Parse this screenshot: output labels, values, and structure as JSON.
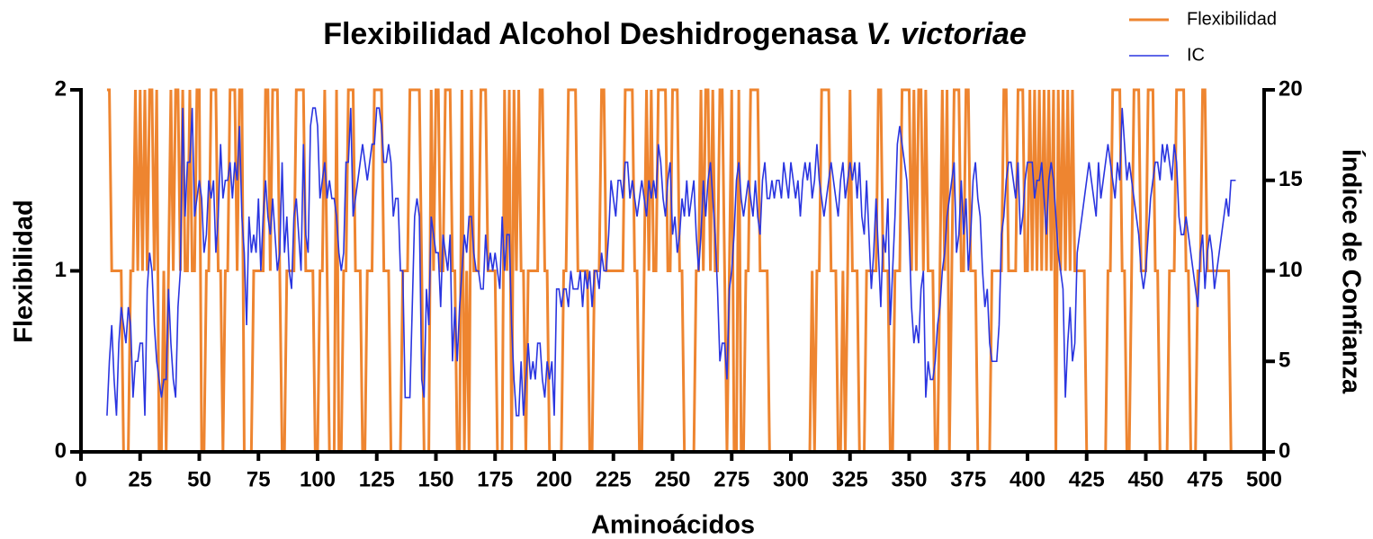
{
  "chart_data": {
    "type": "line",
    "title": [
      "Flexibilidad Alcohol Deshidrogenasa",
      "V. victoriae"
    ],
    "x_label": "Aminoácidos",
    "y_label": "Flexibilidad",
    "y2_label": "Índice de Confianza",
    "xlim": [
      0,
      500
    ],
    "xticks": [
      0,
      25,
      50,
      75,
      100,
      125,
      150,
      175,
      200,
      225,
      250,
      275,
      300,
      325,
      350,
      375,
      400,
      425,
      450,
      475,
      500
    ],
    "ylim": [
      0,
      2
    ],
    "yticks": [
      0,
      1,
      2
    ],
    "y2lim": [
      0,
      20
    ],
    "y2ticks": [
      0,
      5,
      10,
      15,
      20
    ],
    "legend": "top-right",
    "x": [
      11,
      12,
      13,
      14,
      15,
      16,
      17,
      18,
      19,
      20,
      21,
      22,
      23,
      24,
      25,
      26,
      27,
      28,
      29,
      30,
      31,
      32,
      33,
      34,
      35,
      36,
      37,
      38,
      39,
      40,
      41,
      42,
      43,
      44,
      45,
      46,
      47,
      48,
      49,
      50,
      51,
      52,
      53,
      54,
      55,
      56,
      57,
      58,
      59,
      60,
      61,
      62,
      63,
      64,
      65,
      66,
      67,
      68,
      69,
      70,
      71,
      72,
      73,
      74,
      75,
      76,
      77,
      78,
      79,
      80,
      81,
      82,
      83,
      84,
      85,
      86,
      87,
      88,
      89,
      90,
      91,
      92,
      93,
      94,
      95,
      96,
      97,
      98,
      99,
      100,
      101,
      102,
      103,
      104,
      105,
      106,
      107,
      108,
      109,
      110,
      111,
      112,
      113,
      114,
      115,
      116,
      117,
      118,
      119,
      120,
      121,
      122,
      123,
      124,
      125,
      126,
      127,
      128,
      129,
      130,
      131,
      132,
      133,
      134,
      135,
      136,
      137,
      138,
      139,
      140,
      141,
      142,
      143,
      144,
      145,
      146,
      147,
      148,
      149,
      150,
      151,
      152,
      153,
      154,
      155,
      156,
      157,
      158,
      159,
      160,
      161,
      162,
      163,
      164,
      165,
      166,
      167,
      168,
      169,
      170,
      171,
      172,
      173,
      174,
      175,
      176,
      177,
      178,
      179,
      180,
      181,
      182,
      183,
      184,
      185,
      186,
      187,
      188,
      189,
      190,
      191,
      192,
      193,
      194,
      195,
      196,
      197,
      198,
      199,
      200,
      201,
      202,
      203,
      204,
      205,
      206,
      207,
      208,
      209,
      210,
      211,
      212,
      213,
      214,
      215,
      216,
      217,
      218,
      219,
      220,
      221,
      222,
      223,
      224,
      225,
      226,
      227,
      228,
      229,
      230,
      231,
      232,
      233,
      234,
      235,
      236,
      237,
      238,
      239,
      240,
      241,
      242,
      243,
      244,
      245,
      246,
      247,
      248,
      249,
      250,
      251,
      252,
      253,
      254,
      255,
      256,
      257,
      258,
      259,
      260,
      261,
      262,
      263,
      264,
      265,
      266,
      267,
      268,
      269,
      270,
      271,
      272,
      273,
      274,
      275,
      276,
      277,
      278,
      279,
      280,
      281,
      282,
      283,
      284,
      285,
      286,
      287,
      288,
      289,
      290,
      291,
      292,
      293,
      294,
      295,
      296,
      297,
      298,
      299,
      300,
      301,
      302,
      303,
      304,
      305,
      306,
      307,
      308,
      309,
      310,
      311,
      312,
      313,
      314,
      315,
      316,
      317,
      318,
      319,
      320,
      321,
      322,
      323,
      324,
      325,
      326,
      327,
      328,
      329,
      330,
      331,
      332,
      333,
      334,
      335,
      336,
      337,
      338,
      339,
      340,
      341,
      342,
      343,
      344,
      345,
      346,
      347,
      348,
      349,
      350,
      351,
      352,
      353,
      354,
      355,
      356,
      357,
      358,
      359,
      360,
      361,
      362,
      363,
      364,
      365,
      366,
      367,
      368,
      369,
      370,
      371,
      372,
      373,
      374,
      375,
      376,
      377,
      378,
      379,
      380,
      381,
      382,
      383,
      384,
      385,
      386,
      387,
      388,
      389,
      390,
      391,
      392,
      393,
      394,
      395,
      396,
      397,
      398,
      399,
      400,
      401,
      402,
      403,
      404,
      405,
      406,
      407,
      408,
      409,
      410,
      411,
      412,
      413,
      414,
      415,
      416,
      417,
      418,
      419,
      420,
      421,
      422,
      423,
      424,
      425,
      426,
      427,
      428,
      429,
      430,
      431,
      432,
      433,
      434,
      435,
      436,
      437,
      438,
      439,
      440,
      441,
      442,
      443,
      444,
      445,
      446,
      447,
      448,
      449,
      450,
      451,
      452,
      453,
      454,
      455,
      456,
      457,
      458,
      459,
      460,
      461,
      462,
      463,
      464,
      465,
      466,
      467,
      468,
      469,
      470,
      471,
      472,
      473,
      474,
      475,
      476,
      477,
      478,
      479,
      480,
      481,
      482,
      483,
      484,
      485,
      486,
      487,
      488
    ],
    "series": [
      {
        "name": "Flexibilidad",
        "color": "#ee8530",
        "values": [
          2,
          2,
          1,
          1,
          1,
          1,
          1,
          0,
          0,
          0,
          1,
          1,
          2,
          1,
          2,
          1,
          2,
          1,
          2,
          2,
          1,
          2,
          0,
          0,
          1,
          0,
          1,
          2,
          1,
          2,
          2,
          1,
          2,
          1,
          1,
          2,
          1,
          1,
          2,
          2,
          0,
          0,
          1,
          1,
          2,
          2,
          2,
          1,
          1,
          0,
          1,
          1,
          2,
          2,
          2,
          1,
          2,
          2,
          0,
          0,
          0,
          0,
          1,
          1,
          1,
          1,
          1,
          2,
          2,
          1,
          2,
          2,
          2,
          1,
          0,
          0,
          1,
          1,
          1,
          1,
          2,
          2,
          2,
          2,
          1,
          1,
          1,
          1,
          0,
          0,
          1,
          1,
          2,
          1,
          0,
          0,
          0,
          2,
          0,
          0,
          1,
          1,
          2,
          2,
          2,
          1,
          1,
          1,
          0,
          0,
          1,
          1,
          1,
          2,
          2,
          2,
          2,
          1,
          1,
          1,
          0,
          0,
          0,
          0,
          0,
          1,
          1,
          1,
          2,
          2,
          2,
          2,
          2,
          1,
          0,
          0,
          0,
          2,
          1,
          2,
          2,
          1,
          1,
          2,
          2,
          2,
          1,
          1,
          0,
          0,
          2,
          0,
          1,
          0,
          2,
          1,
          1,
          1,
          2,
          2,
          2,
          1,
          1,
          1,
          1,
          0,
          0,
          0,
          2,
          1,
          2,
          0,
          2,
          1,
          2,
          1,
          1,
          0,
          1,
          1,
          1,
          1,
          1,
          2,
          2,
          1,
          1,
          0,
          0,
          0,
          0,
          0,
          0,
          1,
          1,
          2,
          2,
          2,
          2,
          1,
          1,
          1,
          1,
          1,
          0,
          0,
          1,
          1,
          1,
          2,
          2,
          1,
          1,
          1,
          1,
          1,
          1,
          1,
          1,
          2,
          2,
          2,
          2,
          1,
          1,
          0,
          0,
          1,
          2,
          1,
          2,
          1,
          1,
          2,
          2,
          2,
          2,
          1,
          1,
          2,
          2,
          2,
          1,
          1,
          0,
          0,
          0,
          0,
          0,
          1,
          1,
          2,
          1,
          2,
          2,
          1,
          2,
          1,
          1,
          2,
          2,
          1,
          0,
          1,
          2,
          0,
          0,
          2,
          0,
          0,
          1,
          1,
          2,
          2,
          2,
          2,
          1,
          1,
          1,
          1,
          0,
          0,
          0,
          0,
          0,
          0,
          0,
          0,
          0,
          0,
          0,
          0,
          0,
          0,
          0,
          0,
          0,
          0,
          1,
          0,
          1,
          1,
          2,
          2,
          2,
          2,
          1,
          1,
          1,
          0,
          0,
          1,
          0,
          1,
          2,
          1,
          1,
          1,
          0,
          0,
          0,
          1,
          1,
          1,
          1,
          1,
          2,
          2,
          1,
          1,
          1,
          0,
          0,
          1,
          1,
          1,
          2,
          2,
          2,
          2,
          1,
          2,
          1,
          2,
          2,
          1,
          2,
          1,
          1,
          1,
          0,
          0,
          1,
          2,
          1,
          2,
          0,
          1,
          2,
          2,
          2,
          1,
          1,
          2,
          2,
          1,
          1,
          1,
          0,
          0,
          0,
          0,
          0,
          0,
          1,
          1,
          1,
          1,
          1,
          2,
          2,
          1,
          1,
          1,
          1,
          2,
          2,
          2,
          1,
          1,
          2,
          1,
          2,
          1,
          2,
          1,
          2,
          1,
          2,
          1,
          2,
          0,
          2,
          1,
          2,
          1,
          2,
          1,
          2,
          1,
          1,
          1,
          1,
          1,
          0,
          0,
          0,
          0,
          0,
          0,
          0,
          0,
          0,
          1,
          1,
          2,
          2,
          2,
          2,
          1,
          1,
          0,
          0,
          1,
          2,
          2,
          2,
          1,
          1,
          1,
          2,
          2,
          2,
          1,
          1,
          0,
          0,
          0,
          0,
          1,
          1,
          1,
          2,
          2,
          2,
          2,
          1,
          1,
          0,
          0,
          0,
          1,
          1,
          2,
          2,
          1,
          1,
          1,
          1,
          1,
          1,
          1,
          1,
          1,
          1,
          0,
          0,
          0
        ]
      },
      {
        "name": "IC",
        "color": "#2a35e0",
        "axis": "y2",
        "values": [
          2,
          5,
          7,
          4,
          2,
          6,
          8,
          7,
          6,
          8,
          7,
          3,
          5,
          5,
          6,
          6,
          2,
          9,
          11,
          10,
          7,
          5,
          4,
          3,
          4,
          4,
          9,
          6,
          4,
          3,
          8,
          10,
          19,
          13,
          16,
          16,
          19,
          13,
          14,
          15,
          14,
          11,
          12,
          15,
          14,
          15,
          11,
          13,
          17,
          14,
          15,
          15,
          16,
          14,
          16,
          15,
          18,
          13,
          11,
          7,
          13,
          11,
          12,
          11,
          14,
          10,
          13,
          15,
          13,
          12,
          14,
          12,
          10,
          11,
          16,
          11,
          13,
          10,
          9,
          13,
          14,
          12,
          10,
          17,
          12,
          11,
          18,
          19,
          19,
          18,
          14,
          15,
          16,
          14,
          15,
          14,
          14,
          13,
          11,
          10,
          11,
          16,
          16,
          19,
          13,
          14,
          15,
          16,
          17,
          16,
          15,
          16,
          17,
          17,
          19,
          19,
          18,
          16,
          16,
          17,
          16,
          13,
          14,
          14,
          10,
          10,
          3,
          3,
          3,
          8,
          13,
          14,
          13,
          4,
          3,
          9,
          7,
          13,
          12,
          11,
          11,
          8,
          12,
          11,
          10,
          12,
          5,
          8,
          5,
          8,
          10,
          12,
          11,
          13,
          13,
          11,
          10,
          10,
          9,
          9,
          12,
          10,
          11,
          10,
          11,
          10,
          9,
          13,
          10,
          12,
          12,
          7,
          4,
          2,
          2,
          5,
          2,
          4,
          6,
          4,
          5,
          4,
          6,
          6,
          4,
          3,
          5,
          4,
          5,
          2,
          9,
          9,
          8,
          9,
          9,
          8,
          10,
          9,
          9,
          9,
          10,
          8,
          10,
          9,
          10,
          8,
          10,
          10,
          9,
          11,
          10,
          10,
          12,
          15,
          14,
          13,
          15,
          15,
          14,
          16,
          16,
          14,
          15,
          14,
          13,
          14,
          15,
          14,
          13,
          15,
          14,
          15,
          14,
          17,
          16,
          14,
          13,
          15,
          16,
          12,
          13,
          11,
          12,
          14,
          13,
          15,
          13,
          14,
          15,
          12,
          10,
          12,
          15,
          13,
          15,
          16,
          14,
          12,
          9,
          5,
          6,
          6,
          4,
          9,
          10,
          12,
          15,
          16,
          14,
          13,
          14,
          15,
          14,
          13,
          15,
          13,
          12,
          15,
          16,
          14,
          14,
          15,
          14,
          15,
          15,
          14,
          16,
          15,
          14,
          16,
          15,
          14,
          15,
          13,
          15,
          16,
          15,
          16,
          14,
          15,
          17,
          15,
          14,
          13,
          14,
          15,
          16,
          15,
          14,
          13,
          15,
          16,
          14,
          15,
          16,
          15,
          16,
          14,
          16,
          13,
          12,
          15,
          12,
          9,
          11,
          14,
          11,
          8,
          12,
          11,
          14,
          7,
          10,
          13,
          17,
          18,
          17,
          16,
          15,
          12,
          8,
          6,
          7,
          6,
          9,
          10,
          3,
          5,
          4,
          4,
          5,
          7,
          8,
          10,
          11,
          13,
          14,
          15,
          16,
          11,
          12,
          15,
          12,
          14,
          10,
          12,
          15,
          16,
          14,
          13,
          10,
          8,
          9,
          6,
          5,
          5,
          5,
          7,
          12,
          13,
          15,
          16,
          16,
          15,
          14,
          16,
          12,
          13,
          15,
          16,
          16,
          16,
          14,
          15,
          15,
          16,
          14,
          12,
          15,
          16,
          15,
          13,
          11,
          10,
          9,
          3,
          6,
          8,
          5,
          6,
          11,
          12,
          13,
          14,
          15,
          16,
          15,
          14,
          13,
          16,
          14,
          15,
          16,
          17,
          16,
          15,
          14,
          16,
          15,
          19,
          17,
          15,
          16,
          15,
          14,
          13,
          12,
          10,
          9,
          10,
          12,
          14,
          15,
          16,
          16,
          15,
          17,
          16,
          17,
          16,
          15,
          17,
          16,
          13,
          12,
          12,
          13,
          12,
          11,
          10,
          9,
          8,
          11,
          12,
          9,
          11,
          12,
          11,
          9,
          10,
          11,
          12,
          13,
          14,
          13,
          15,
          15,
          15
        ]
      }
    ]
  }
}
